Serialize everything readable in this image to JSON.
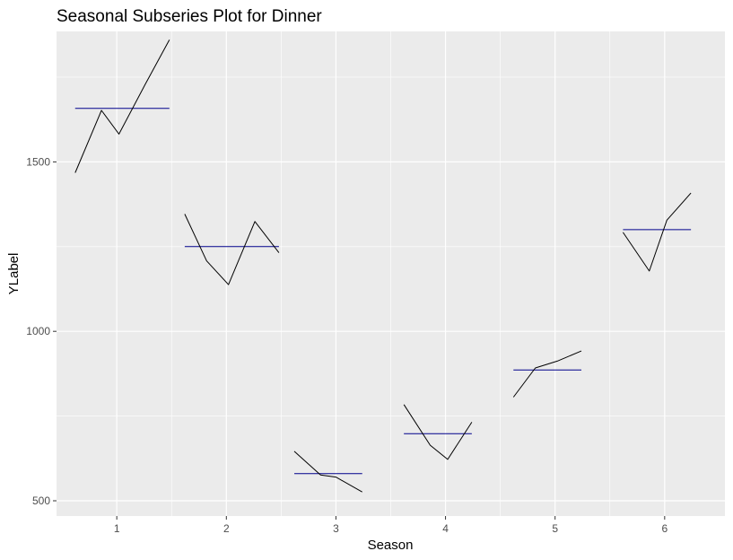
{
  "chart_data": {
    "type": "line",
    "title": "Seasonal Subseries Plot for Dinner",
    "xlabel": "Season",
    "ylabel": "YLabel",
    "xlim": [
      0.45,
      6.55
    ],
    "ylim": [
      455,
      1885
    ],
    "x_ticks": [
      1,
      2,
      3,
      4,
      5,
      6
    ],
    "x_tick_labels": [
      "1",
      "2",
      "3",
      "4",
      "5",
      "6"
    ],
    "y_ticks": [
      500,
      1000,
      1500
    ],
    "y_tick_labels": [
      "500",
      "1000",
      "1500"
    ],
    "grid": true,
    "legend": "none",
    "colors": {
      "panel": "#ebebeb",
      "grid": "#ffffff",
      "series": "#000000",
      "mean": "#00008b",
      "tick": "#4d4d4d"
    },
    "seasons": [
      {
        "season": 1,
        "x": [
          0.62,
          0.86,
          1.02,
          1.26,
          1.48
        ],
        "values": [
          1468,
          1652,
          1582,
          1729,
          1860
        ],
        "mean": 1658
      },
      {
        "season": 2,
        "x": [
          1.62,
          1.82,
          2.02,
          2.26,
          2.48
        ],
        "values": [
          1346,
          1208,
          1138,
          1324,
          1232
        ],
        "mean": 1250
      },
      {
        "season": 3,
        "x": [
          2.62,
          2.86,
          3.0,
          3.24
        ],
        "values": [
          646,
          576,
          570,
          526
        ],
        "mean": 580
      },
      {
        "season": 4,
        "x": [
          3.62,
          3.86,
          4.02,
          4.24
        ],
        "values": [
          784,
          664,
          622,
          732
        ],
        "mean": 698
      },
      {
        "season": 5,
        "x": [
          4.62,
          4.82,
          5.02,
          5.24
        ],
        "values": [
          806,
          892,
          912,
          942
        ],
        "mean": 886
      },
      {
        "season": 6,
        "x": [
          5.62,
          5.86,
          6.02,
          6.24
        ],
        "values": [
          1292,
          1178,
          1328,
          1408
        ],
        "mean": 1300
      }
    ]
  }
}
